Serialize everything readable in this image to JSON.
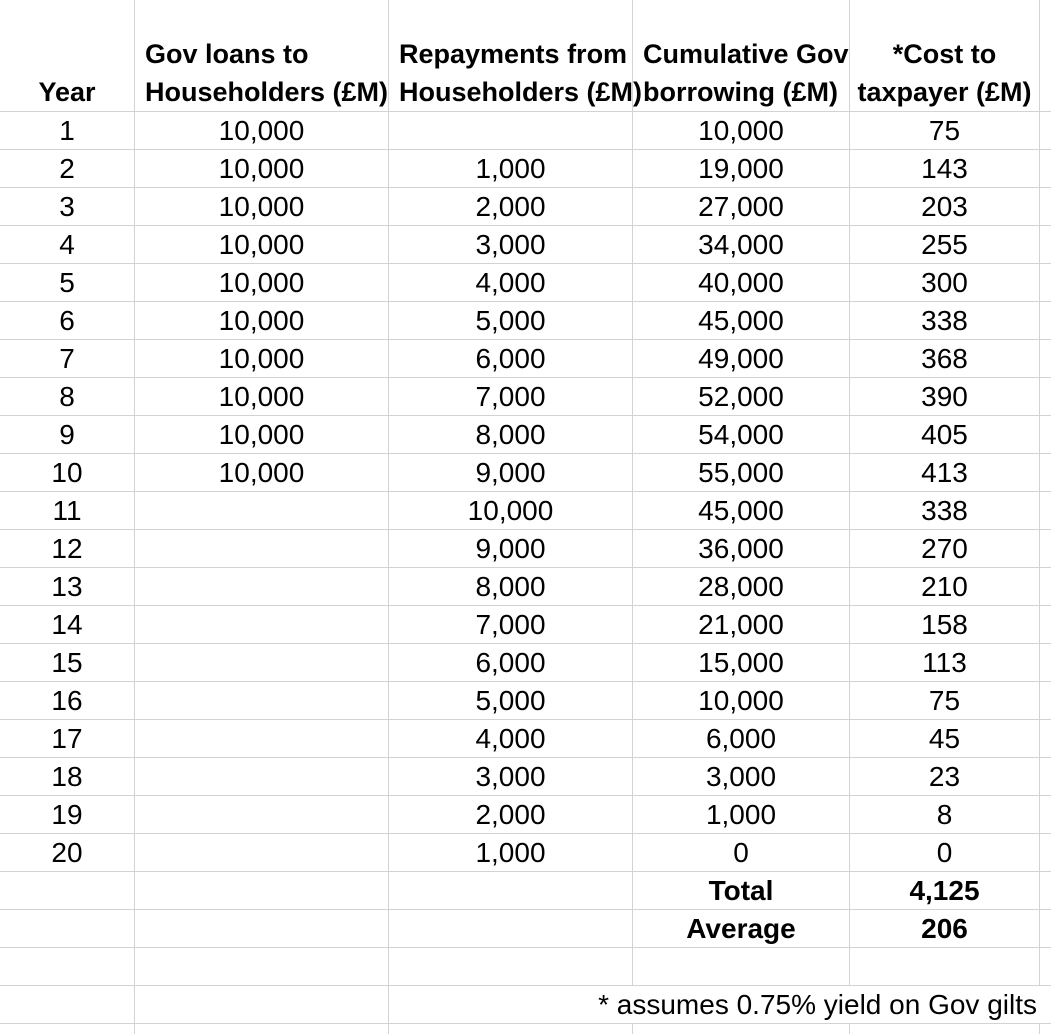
{
  "colors": {
    "gridline": "#d3d3d3",
    "text": "#000000",
    "background": "#ffffff"
  },
  "table": {
    "headers": [
      {
        "line1": "",
        "line2": "Year"
      },
      {
        "line1": "Gov loans to",
        "line2": "Householders (£M)"
      },
      {
        "line1": "Repayments from",
        "line2": "Householders (£M)"
      },
      {
        "line1": "Cumulative Gov",
        "line2": "borrowing (£M)"
      },
      {
        "line1": "*Cost to",
        "line2": "taxpayer (£M)"
      }
    ],
    "rows": [
      {
        "year": "1",
        "loans": "10,000",
        "repayments": "",
        "cumulative": "10,000",
        "cost": "75"
      },
      {
        "year": "2",
        "loans": "10,000",
        "repayments": "1,000",
        "cumulative": "19,000",
        "cost": "143"
      },
      {
        "year": "3",
        "loans": "10,000",
        "repayments": "2,000",
        "cumulative": "27,000",
        "cost": "203"
      },
      {
        "year": "4",
        "loans": "10,000",
        "repayments": "3,000",
        "cumulative": "34,000",
        "cost": "255"
      },
      {
        "year": "5",
        "loans": "10,000",
        "repayments": "4,000",
        "cumulative": "40,000",
        "cost": "300"
      },
      {
        "year": "6",
        "loans": "10,000",
        "repayments": "5,000",
        "cumulative": "45,000",
        "cost": "338"
      },
      {
        "year": "7",
        "loans": "10,000",
        "repayments": "6,000",
        "cumulative": "49,000",
        "cost": "368"
      },
      {
        "year": "8",
        "loans": "10,000",
        "repayments": "7,000",
        "cumulative": "52,000",
        "cost": "390"
      },
      {
        "year": "9",
        "loans": "10,000",
        "repayments": "8,000",
        "cumulative": "54,000",
        "cost": "405"
      },
      {
        "year": "10",
        "loans": "10,000",
        "repayments": "9,000",
        "cumulative": "55,000",
        "cost": "413"
      },
      {
        "year": "11",
        "loans": "",
        "repayments": "10,000",
        "cumulative": "45,000",
        "cost": "338"
      },
      {
        "year": "12",
        "loans": "",
        "repayments": "9,000",
        "cumulative": "36,000",
        "cost": "270"
      },
      {
        "year": "13",
        "loans": "",
        "repayments": "8,000",
        "cumulative": "28,000",
        "cost": "210"
      },
      {
        "year": "14",
        "loans": "",
        "repayments": "7,000",
        "cumulative": "21,000",
        "cost": "158"
      },
      {
        "year": "15",
        "loans": "",
        "repayments": "6,000",
        "cumulative": "15,000",
        "cost": "113"
      },
      {
        "year": "16",
        "loans": "",
        "repayments": "5,000",
        "cumulative": "10,000",
        "cost": "75"
      },
      {
        "year": "17",
        "loans": "",
        "repayments": "4,000",
        "cumulative": "6,000",
        "cost": "45"
      },
      {
        "year": "18",
        "loans": "",
        "repayments": "3,000",
        "cumulative": "3,000",
        "cost": "23"
      },
      {
        "year": "19",
        "loans": "",
        "repayments": "2,000",
        "cumulative": "1,000",
        "cost": "8"
      },
      {
        "year": "20",
        "loans": "",
        "repayments": "1,000",
        "cumulative": "0",
        "cost": "0"
      }
    ],
    "total_label": "Total",
    "total_value": "4,125",
    "average_label": "Average",
    "average_value": "206",
    "footnote": "* assumes 0.75% yield on Gov gilts"
  }
}
